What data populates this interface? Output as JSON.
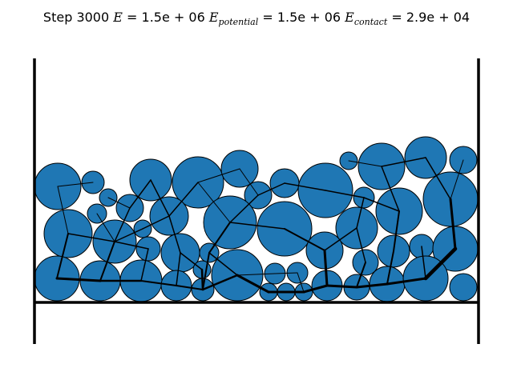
{
  "title": {
    "step_label": "Step 3000",
    "E_symbol": "E",
    "E_value": "= 1.5e + 06",
    "potential_symbol": "E",
    "potential_sub": "potential",
    "potential_value": "= 1.5e + 06",
    "contact_symbol": "E",
    "contact_sub": "contact",
    "contact_value": "= 2.9e + 04"
  },
  "colors": {
    "particle_fill": "#1f77b4",
    "particle_edge": "#000000",
    "wall": "#000000",
    "force": "#000000"
  }
}
